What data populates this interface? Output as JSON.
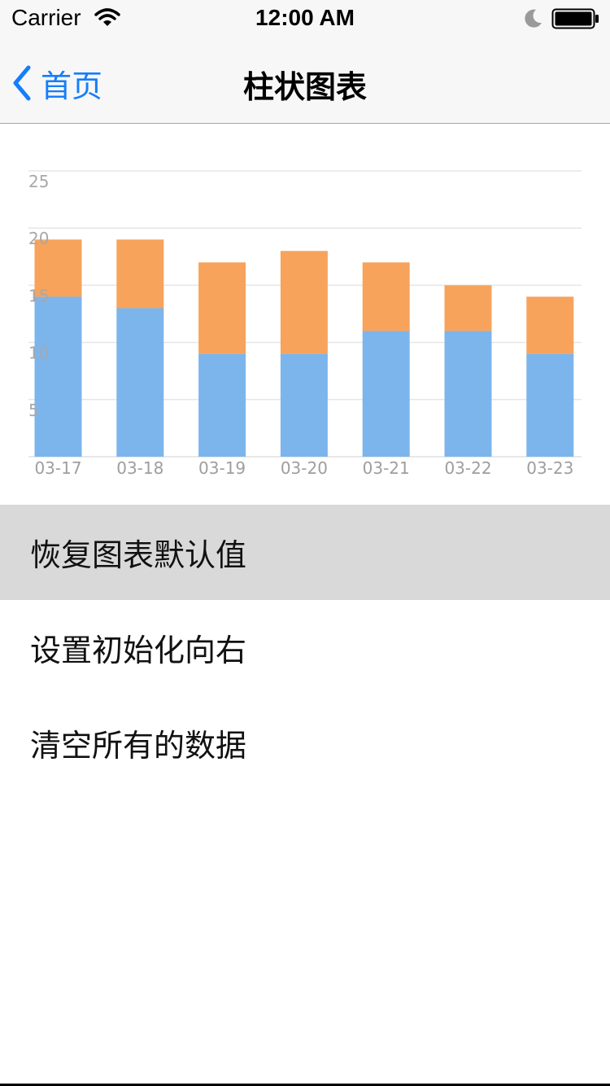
{
  "status_bar": {
    "carrier": "Carrier",
    "time": "12:00 AM",
    "icons": [
      "wifi-icon",
      "moon-icon",
      "battery-icon"
    ]
  },
  "nav_bar": {
    "back_label": "首页",
    "title": "柱状图表",
    "accent_color": "#157efb"
  },
  "chart_data": {
    "type": "bar",
    "stacked": true,
    "categories": [
      "03-17",
      "03-18",
      "03-19",
      "03-20",
      "03-21",
      "03-22",
      "03-23"
    ],
    "series": [
      {
        "values": [
          14,
          13,
          9,
          9,
          11,
          11,
          9
        ],
        "color": "#7cb5ec"
      },
      {
        "values": [
          5,
          6,
          8,
          9,
          6,
          4,
          5
        ],
        "color": "#f7a35c"
      }
    ],
    "yticks": [
      5,
      10,
      15,
      20,
      25
    ],
    "ylim": [
      0,
      25
    ],
    "grid": true,
    "title": "",
    "xlabel": "",
    "ylabel": ""
  },
  "menu": {
    "items": [
      {
        "label": "恢复图表默认值",
        "highlighted": true
      },
      {
        "label": "设置初始化向右",
        "highlighted": false
      },
      {
        "label": "清空所有的数据",
        "highlighted": false
      }
    ]
  }
}
